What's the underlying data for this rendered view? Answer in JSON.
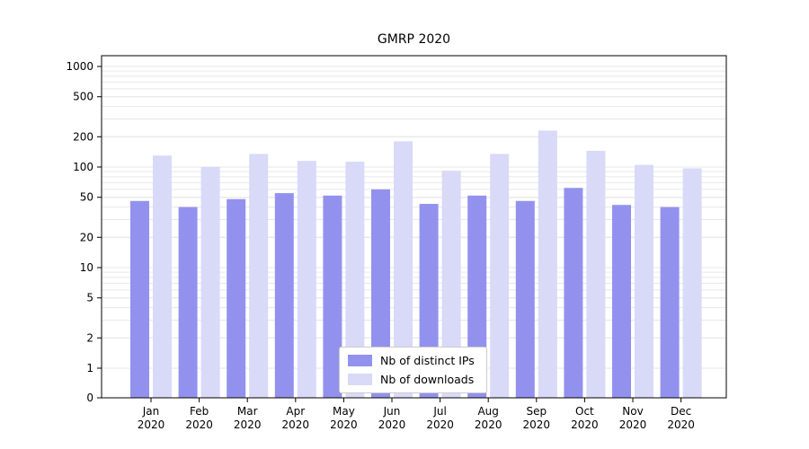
{
  "chart_data": {
    "type": "bar",
    "title": "GMRP 2020",
    "months": [
      "Jan",
      "Feb",
      "Mar",
      "Apr",
      "May",
      "Jun",
      "Jul",
      "Aug",
      "Sep",
      "Oct",
      "Nov",
      "Dec"
    ],
    "year_label": "2020",
    "series": [
      {
        "name": "Nb of distinct IPs",
        "color": "#9292ee",
        "values": [
          46,
          40,
          48,
          55,
          52,
          60,
          43,
          52,
          46,
          62,
          42,
          40
        ]
      },
      {
        "name": "Nb of downloads",
        "color": "#d9d9f8",
        "values": [
          130,
          100,
          135,
          115,
          113,
          180,
          92,
          135,
          230,
          145,
          105,
          97
        ]
      },
      {
        "name": "",
        "color": "",
        "values": []
      }
    ],
    "yscale": "symlog",
    "yticks": [
      0,
      1,
      2,
      5,
      10,
      20,
      50,
      100,
      200,
      500,
      1000
    ],
    "ylim": [
      0,
      1300
    ],
    "grid": true,
    "legend_position": "lower center",
    "colors": {
      "grid": "#e7e7e7",
      "axis": "#000000",
      "tick_label": "#000000",
      "background": "#ffffff"
    }
  }
}
